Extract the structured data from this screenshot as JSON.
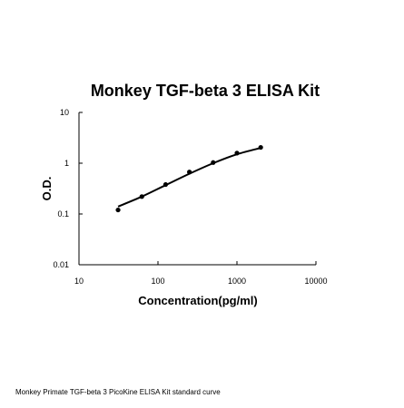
{
  "chart_data": {
    "type": "scatter",
    "title": "Monkey TGF-beta 3 ELISA Kit",
    "xlabel": "Concentration(pg/ml)",
    "ylabel": "O.D.",
    "xscale": "log",
    "yscale": "log",
    "xlim": [
      10,
      10000
    ],
    "ylim": [
      0.01,
      10
    ],
    "x_ticks": [
      "10",
      "100",
      "1000",
      "10000"
    ],
    "y_ticks": [
      "0.01",
      "0.1",
      "1",
      "10"
    ],
    "grid": false,
    "legend": "none",
    "points": [
      {
        "x": 31.25,
        "y": 0.12
      },
      {
        "x": 62.5,
        "y": 0.22
      },
      {
        "x": 125,
        "y": 0.38
      },
      {
        "x": 250,
        "y": 0.67
      },
      {
        "x": 500,
        "y": 1.03
      },
      {
        "x": 1000,
        "y": 1.58
      },
      {
        "x": 2000,
        "y": 2.05
      }
    ],
    "curve": [
      {
        "x": 31.25,
        "y": 0.14
      },
      {
        "x": 62.5,
        "y": 0.22
      },
      {
        "x": 125,
        "y": 0.37
      },
      {
        "x": 250,
        "y": 0.62
      },
      {
        "x": 500,
        "y": 1.0
      },
      {
        "x": 1000,
        "y": 1.5
      },
      {
        "x": 2000,
        "y": 2.0
      }
    ],
    "colors": {
      "marks": "#000000",
      "background": "#ffffff"
    }
  },
  "caption": "Monkey Primate TGF-beta 3 PicoKine ELISA Kit standard curve"
}
